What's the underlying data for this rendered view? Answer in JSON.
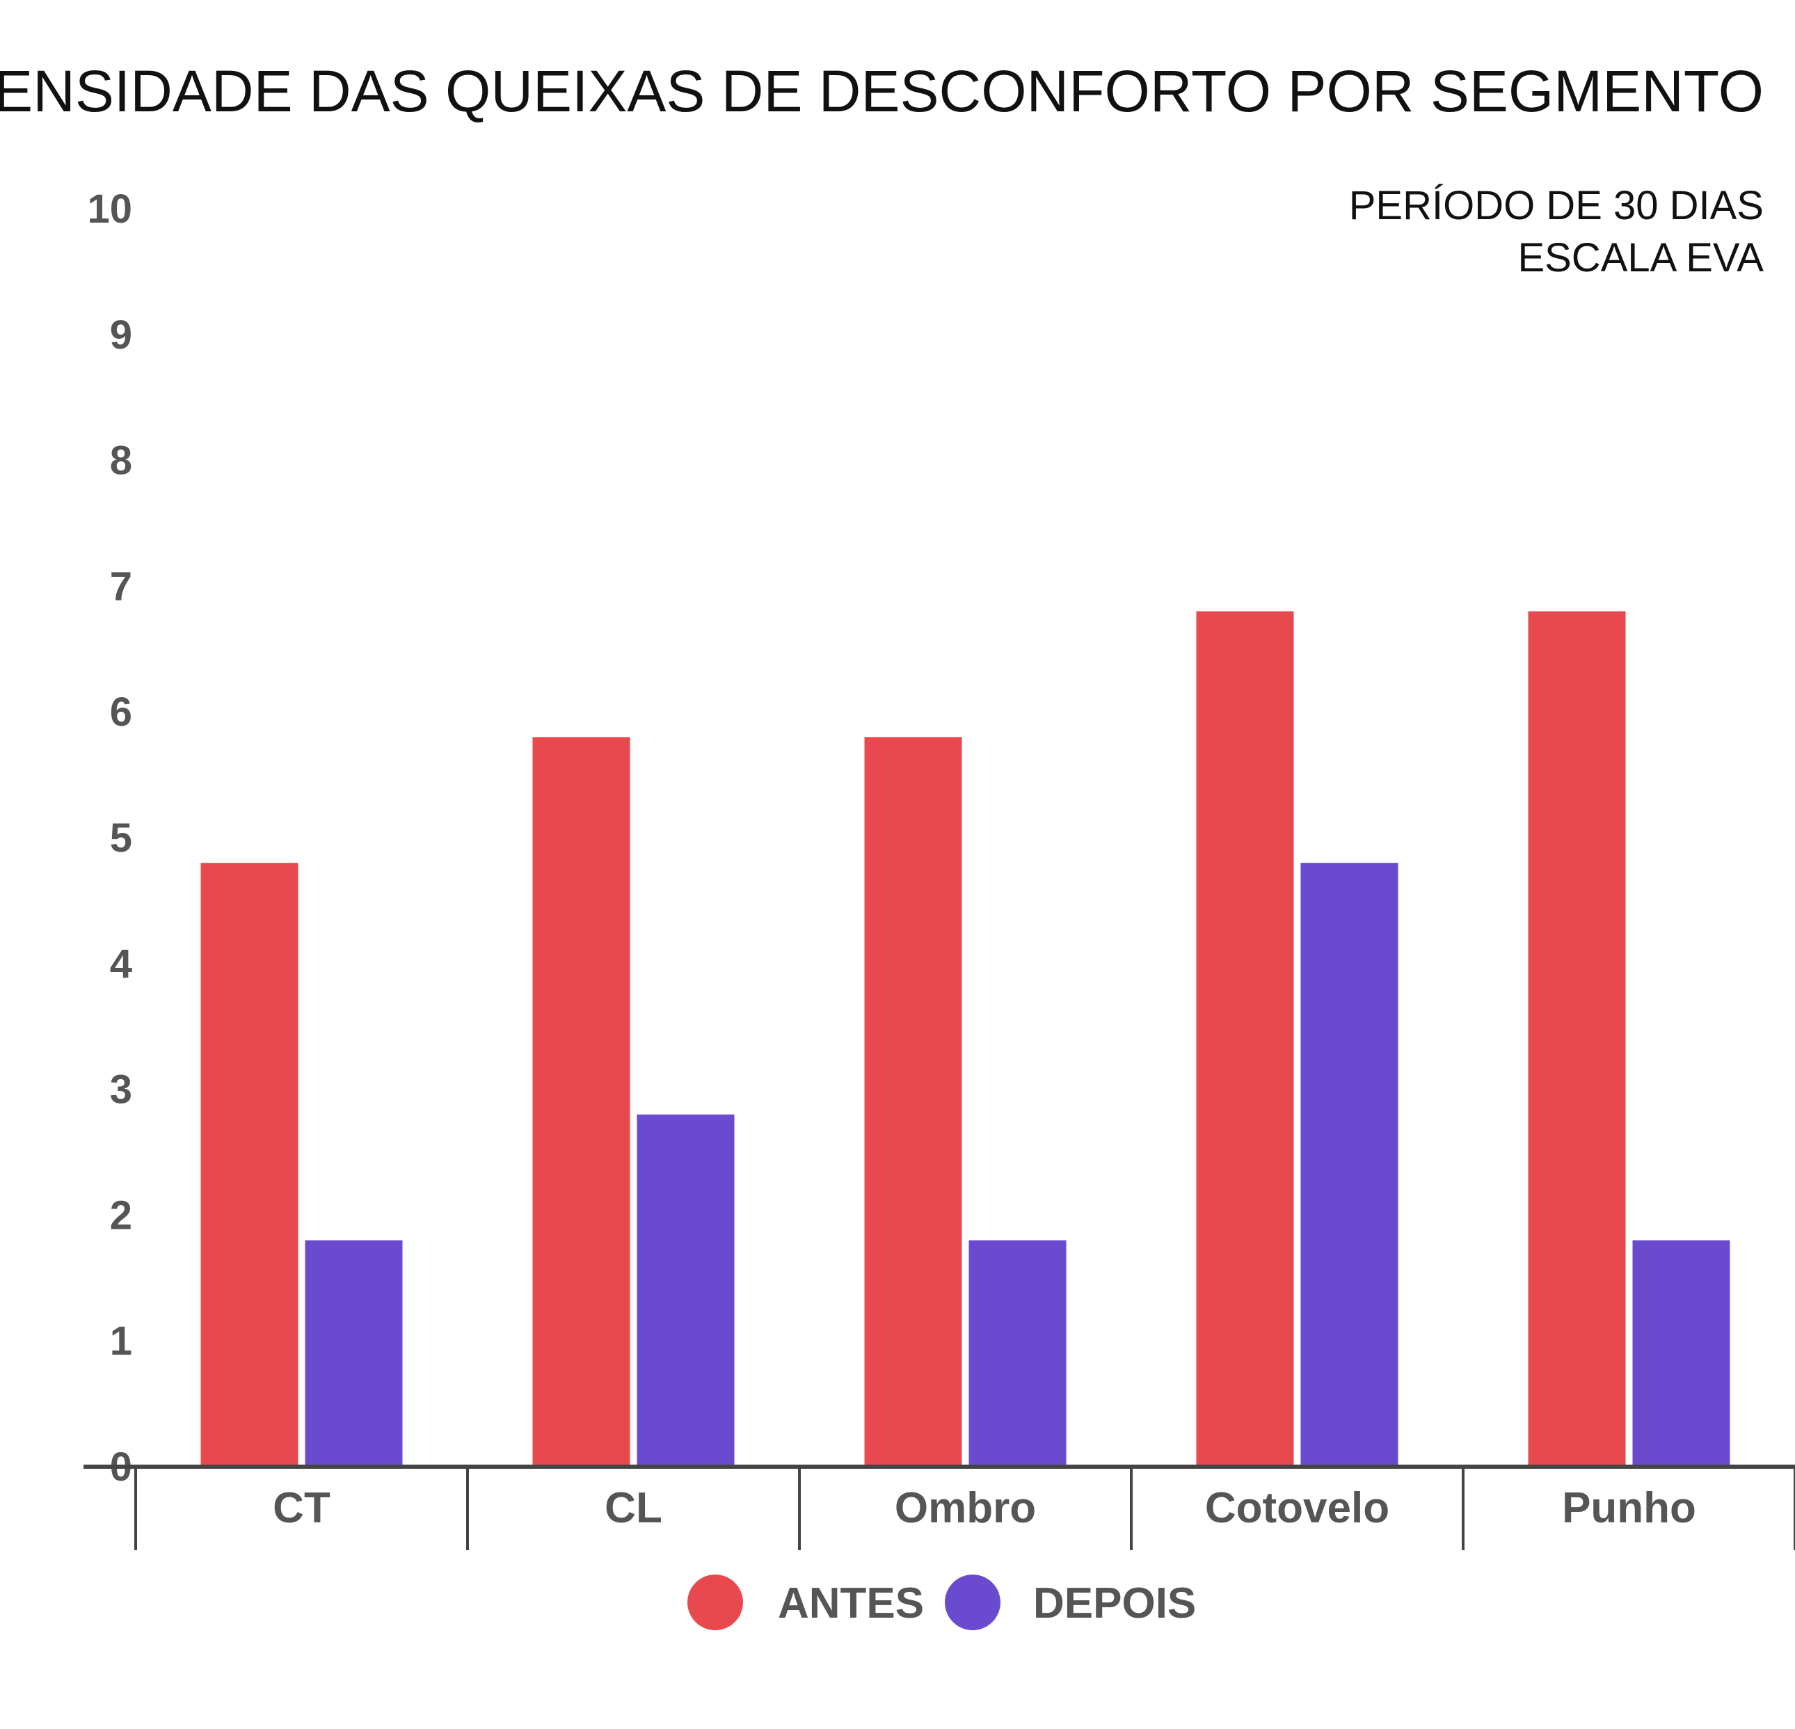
{
  "chart_data": {
    "type": "bar",
    "title": "INTENSIDADE DAS QUEIXAS DE DESCONFORTO POR SEGMENTO",
    "subtitle_lines": [
      "PERÍODO DE 30 DIAS",
      "ESCALA EVA"
    ],
    "xlabel": "",
    "ylabel": "",
    "categories": [
      "CT",
      "CL",
      "Ombro",
      "Cotovelo",
      "Punho"
    ],
    "series": [
      {
        "name": "ANTES",
        "color": "#e8494e",
        "values": [
          4.8,
          5.8,
          5.8,
          6.8,
          6.8
        ]
      },
      {
        "name": "DEPOIS",
        "color": "#6a4bcf",
        "values": [
          1.8,
          2.8,
          1.8,
          4.8,
          1.8
        ]
      }
    ],
    "ylim": [
      0,
      10
    ],
    "yticks": [
      "0",
      "1",
      "2",
      "3",
      "4",
      "5",
      "6",
      "7",
      "8",
      "9",
      "10"
    ],
    "grid": false,
    "legend_position": "bottom"
  }
}
